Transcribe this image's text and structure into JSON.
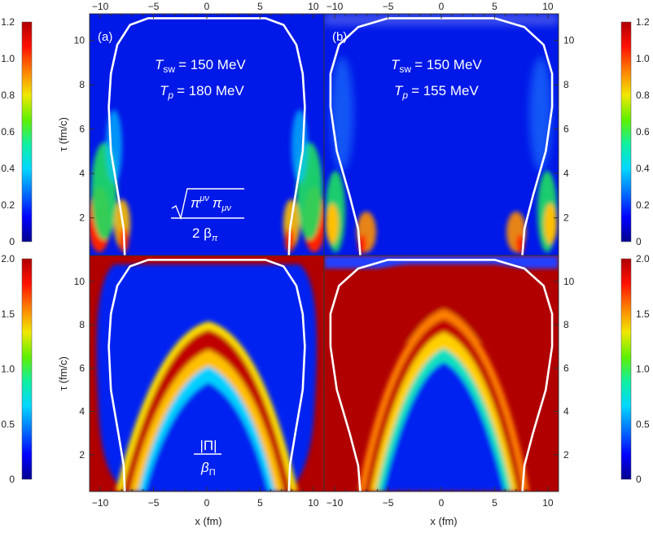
{
  "chart_data": {
    "type": "heatmap",
    "colormap": [
      "#00008f",
      "#0000ff",
      "#0070ff",
      "#00d8ff",
      "#10f0a0",
      "#60f000",
      "#f0e800",
      "#ff8000",
      "#ff1000",
      "#b00000"
    ],
    "xlabel": "x (fm)",
    "ylabel": "τ (fm/c)",
    "xlim": [
      -11,
      11
    ],
    "ylim": [
      0.3,
      11.2
    ],
    "x_ticks": [
      "−10",
      "−5",
      "0",
      "5",
      "10"
    ],
    "y_ticks": [
      "2",
      "4",
      "6",
      "8",
      "10"
    ],
    "rows": [
      {
        "quantity_label": {
          "root_text": "π",
          "mu_up": "μν",
          "pi2": "π",
          "mu_down": "μν",
          "denominator": "2 β",
          "den_sub": "π"
        },
        "colorbar": {
          "min": 0,
          "max": 1.2,
          "ticks": [
            "0",
            "0.2",
            "0.4",
            "0.6",
            "0.8",
            "1.0",
            "1.2"
          ]
        }
      },
      {
        "quantity_label": {
          "numerator": "|Π|",
          "denominator": "β",
          "den_sub": "Π"
        },
        "colorbar": {
          "min": 0,
          "max": 2.0,
          "ticks": [
            "0",
            "0.5",
            "1.0",
            "1.5",
            "2.0"
          ]
        }
      }
    ],
    "panels": [
      {
        "label": "(a)",
        "T_sw_label": "T",
        "T_sw_sub": "sw",
        "T_sw_value": "= 150 MeV",
        "T_p_label": "T",
        "T_p_sub": "p",
        "T_p_value": "= 180 MeV",
        "freezeout_curve": [
          [
            -7.7,
            0.3
          ],
          [
            -7.8,
            1.5
          ],
          [
            -8.3,
            3
          ],
          [
            -9.0,
            5
          ],
          [
            -9.2,
            7
          ],
          [
            -9.0,
            8.5
          ],
          [
            -8.4,
            9.8
          ],
          [
            -7.2,
            10.7
          ],
          [
            -5.5,
            11.0
          ],
          [
            5.5,
            11.0
          ],
          [
            7.2,
            10.7
          ],
          [
            8.4,
            9.8
          ],
          [
            9.0,
            8.5
          ],
          [
            9.2,
            7
          ],
          [
            9.0,
            5
          ],
          [
            8.3,
            3
          ],
          [
            7.8,
            1.5
          ],
          [
            7.7,
            0.3
          ]
        ]
      },
      {
        "label": "(b)",
        "T_sw_label": "T",
        "T_sw_sub": "sw",
        "T_sw_value": "= 150 MeV",
        "T_p_label": "T",
        "T_p_sub": "p",
        "T_p_value": "= 155 MeV",
        "freezeout_curve": [
          [
            -7.6,
            0.3
          ],
          [
            -7.8,
            1.5
          ],
          [
            -8.6,
            3
          ],
          [
            -9.8,
            5
          ],
          [
            -10.4,
            7
          ],
          [
            -10.4,
            8.5
          ],
          [
            -9.6,
            9.8
          ],
          [
            -7.8,
            10.6
          ],
          [
            -5.0,
            11.0
          ],
          [
            5.0,
            11.0
          ],
          [
            7.8,
            10.6
          ],
          [
            9.6,
            9.8
          ],
          [
            10.4,
            8.5
          ],
          [
            10.4,
            7
          ],
          [
            9.8,
            5
          ],
          [
            8.6,
            3
          ],
          [
            7.8,
            1.5
          ],
          [
            7.6,
            0.3
          ]
        ]
      }
    ]
  }
}
